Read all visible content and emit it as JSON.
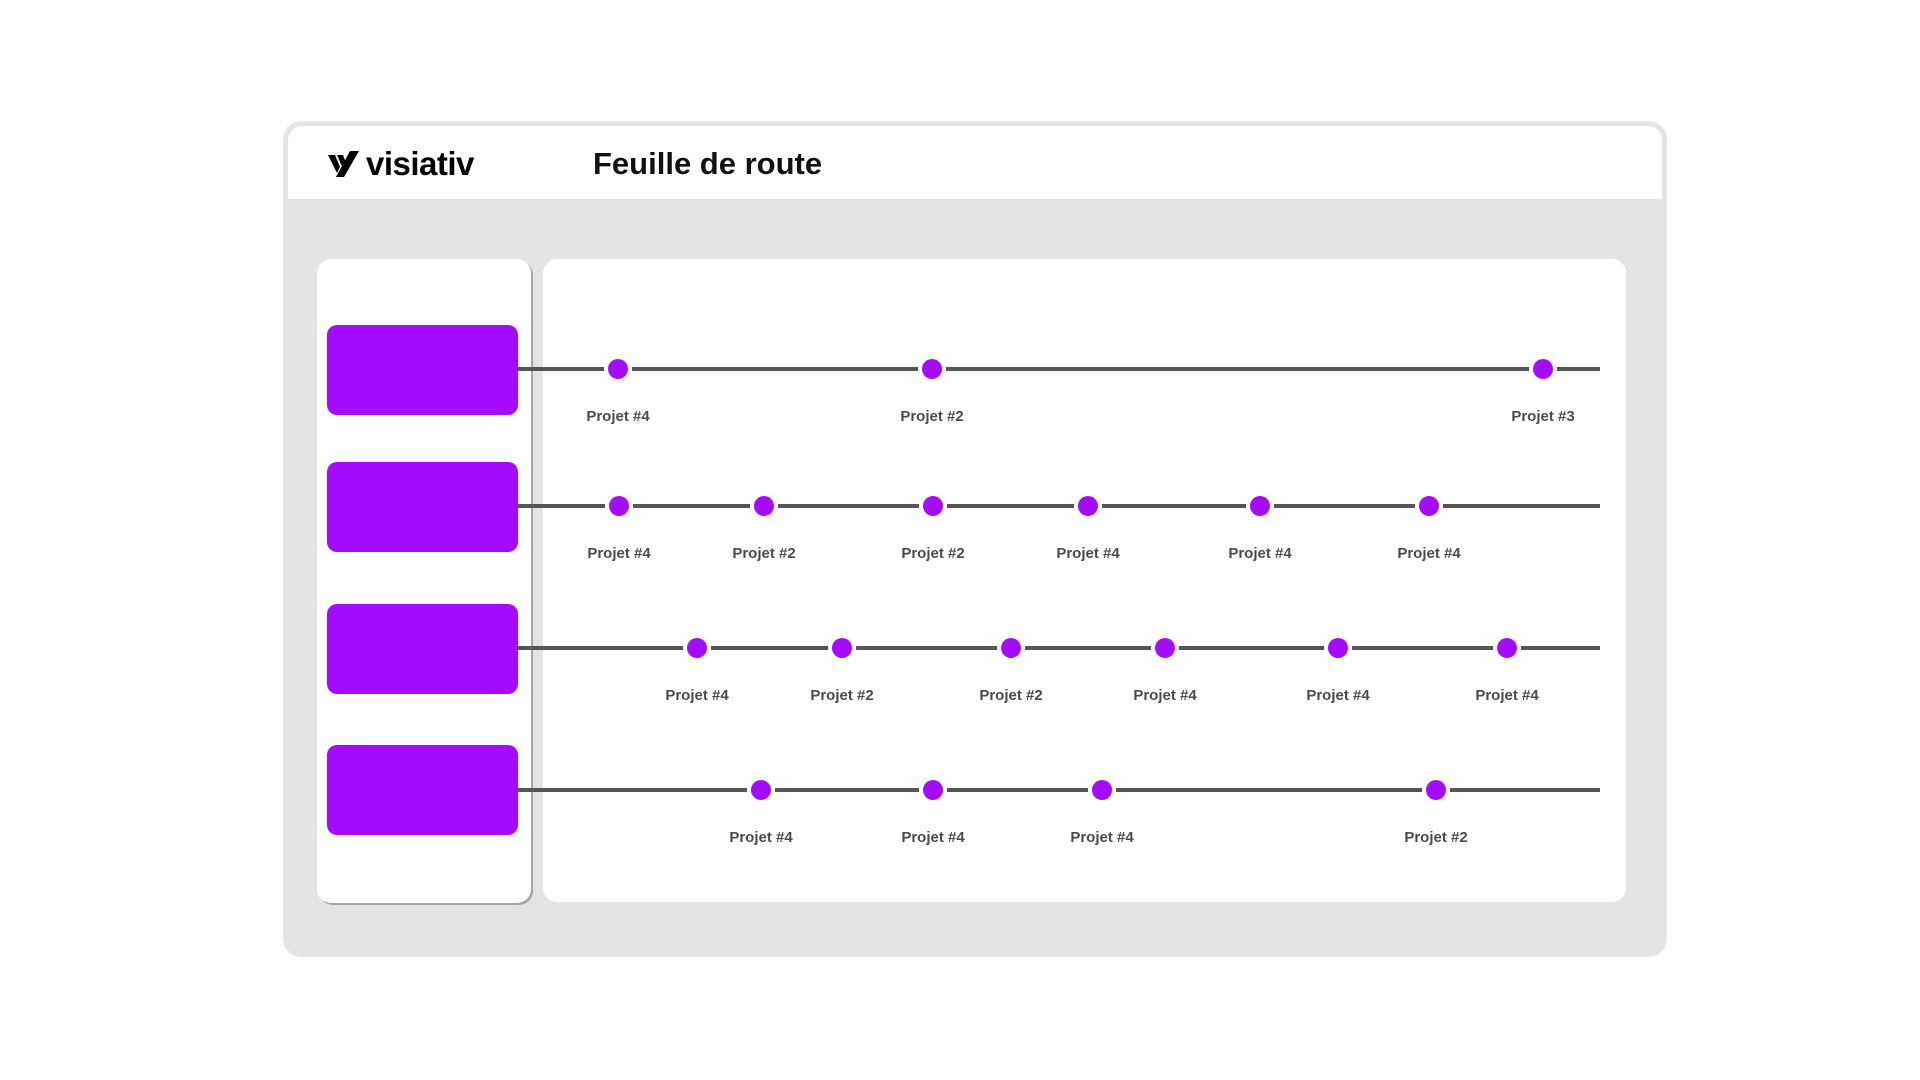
{
  "header": {
    "logo_text": "visiativ",
    "logo_icon": "visiativ-check-mark",
    "title": "Feuille de route"
  },
  "colors": {
    "accent": "#a50bff",
    "line": "#555555",
    "label": "#4b4b4b",
    "frame": "#e4e4e4"
  },
  "lanes": [
    {
      "milestones": [
        {
          "label": "Projet #4"
        },
        {
          "label": "Projet #2"
        },
        {
          "label": "Projet #3"
        }
      ]
    },
    {
      "milestones": [
        {
          "label": "Projet #4"
        },
        {
          "label": "Projet #2"
        },
        {
          "label": "Projet #2"
        },
        {
          "label": "Projet #4"
        },
        {
          "label": "Projet #4"
        },
        {
          "label": "Projet #4"
        }
      ]
    },
    {
      "milestones": [
        {
          "label": "Projet #4"
        },
        {
          "label": "Projet #2"
        },
        {
          "label": "Projet #2"
        },
        {
          "label": "Projet #4"
        },
        {
          "label": "Projet #4"
        },
        {
          "label": "Projet #4"
        }
      ]
    },
    {
      "milestones": [
        {
          "label": "Projet #4"
        },
        {
          "label": "Projet #4"
        },
        {
          "label": "Projet #4"
        },
        {
          "label": "Projet #2"
        }
      ]
    }
  ]
}
